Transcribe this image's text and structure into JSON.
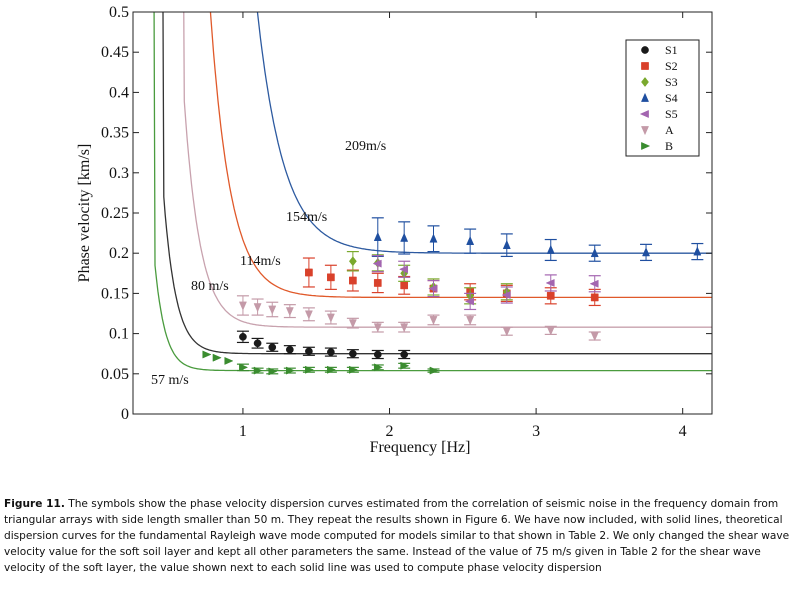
{
  "chart_data": {
    "type": "scatter",
    "xlabel": "Frequency [Hz]",
    "ylabel": "Phase velocity [km/s]",
    "xlim": [
      0.25,
      4.2
    ],
    "ylim": [
      0,
      0.5
    ],
    "xticks": [
      1,
      2,
      3,
      4
    ],
    "xtick_labels": [
      "1",
      "2",
      "3",
      "4"
    ],
    "yticks": [
      0,
      0.05,
      0.1,
      0.15,
      0.2,
      0.25,
      0.3,
      0.35,
      0.4,
      0.45,
      0.5
    ],
    "ytick_labels": [
      "0",
      "0.05",
      "0.1",
      "0.15",
      "0.2",
      "0.25",
      "0.3",
      "0.35",
      "0.4",
      "0.45",
      "0.5"
    ],
    "legend_position": "top-right",
    "series": [
      {
        "name": "S1",
        "marker": "circle",
        "color": "#1a1a1a",
        "x": [
          1.0,
          1.1,
          1.2,
          1.32,
          1.45,
          1.6,
          1.75,
          1.92,
          2.1
        ],
        "y": [
          0.096,
          0.088,
          0.083,
          0.08,
          0.078,
          0.077,
          0.075,
          0.074,
          0.074
        ],
        "err": [
          0.007,
          0.006,
          0.005,
          0.005,
          0.005,
          0.005,
          0.005,
          0.005,
          0.005
        ]
      },
      {
        "name": "S2",
        "marker": "square",
        "color": "#d9412b",
        "x": [
          1.45,
          1.6,
          1.75,
          1.92,
          2.1,
          2.3,
          2.55,
          2.8,
          3.1,
          3.4
        ],
        "y": [
          0.176,
          0.17,
          0.166,
          0.163,
          0.16,
          0.156,
          0.152,
          0.15,
          0.147,
          0.145
        ],
        "err": [
          0.018,
          0.015,
          0.013,
          0.012,
          0.011,
          0.01,
          0.01,
          0.01,
          0.01,
          0.01
        ]
      },
      {
        "name": "S3",
        "marker": "diamond",
        "color": "#7aa92e",
        "x": [
          1.75,
          1.92,
          2.1,
          2.3,
          2.55,
          2.8
        ],
        "y": [
          0.19,
          0.188,
          0.175,
          0.158,
          0.147,
          0.152
        ],
        "err": [
          0.012,
          0.01,
          0.01,
          0.01,
          0.01,
          0.01
        ]
      },
      {
        "name": "S4",
        "marker": "triangle-up",
        "color": "#1f4fa0",
        "x": [
          1.92,
          2.1,
          2.3,
          2.55,
          2.8,
          3.1,
          3.4,
          3.75,
          4.1
        ],
        "y": [
          0.22,
          0.219,
          0.218,
          0.215,
          0.21,
          0.204,
          0.2,
          0.201,
          0.202
        ],
        "err": [
          0.024,
          0.02,
          0.016,
          0.015,
          0.014,
          0.013,
          0.01,
          0.01,
          0.01
        ]
      },
      {
        "name": "S5",
        "marker": "triangle-left",
        "color": "#a365b0",
        "x": [
          1.92,
          2.1,
          2.3,
          2.55,
          2.8,
          3.1,
          3.4
        ],
        "y": [
          0.187,
          0.18,
          0.156,
          0.14,
          0.148,
          0.163,
          0.162
        ],
        "err": [
          0.01,
          0.01,
          0.01,
          0.01,
          0.01,
          0.01,
          0.01
        ]
      },
      {
        "name": "A",
        "marker": "triangle-down",
        "color": "#c49aa8",
        "x": [
          1.0,
          1.1,
          1.2,
          1.32,
          1.45,
          1.6,
          1.75,
          1.92,
          2.1,
          2.3,
          2.55,
          2.8,
          3.1,
          3.4
        ],
        "y": [
          0.135,
          0.133,
          0.13,
          0.128,
          0.124,
          0.12,
          0.113,
          0.108,
          0.108,
          0.117,
          0.117,
          0.103,
          0.104,
          0.097
        ],
        "err": [
          0.012,
          0.01,
          0.009,
          0.008,
          0.008,
          0.008,
          0.006,
          0.006,
          0.006,
          0.006,
          0.006,
          0.005,
          0.005,
          0.005
        ]
      },
      {
        "name": "B",
        "marker": "triangle-right",
        "color": "#3a8c2f",
        "x": [
          0.75,
          0.82,
          0.9,
          1.0,
          1.1,
          1.2,
          1.32,
          1.45,
          1.6,
          1.75,
          1.92,
          2.1,
          2.3
        ],
        "y": [
          0.074,
          0.07,
          0.066,
          0.058,
          0.054,
          0.053,
          0.054,
          0.055,
          0.055,
          0.055,
          0.058,
          0.06,
          0.054
        ],
        "err": [
          0,
          0,
          0,
          0.004,
          0.003,
          0.003,
          0.003,
          0.003,
          0.003,
          0.003,
          0.003,
          0.003,
          0.002
        ]
      }
    ],
    "theory_curves": [
      {
        "label": "57 m/s",
        "color": "#4a9b3e",
        "asymptote": 0.054,
        "fc": 0.395,
        "k": 0.07
      },
      {
        "label": "80 m/s",
        "color": "#333333",
        "asymptote": 0.075,
        "fc": 0.46,
        "k": 0.07
      },
      {
        "label": "114m/s",
        "color": "#c8a2ae",
        "asymptote": 0.108,
        "fc": 0.6,
        "k": 0.07
      },
      {
        "label": "154m/s",
        "color": "#e0592a",
        "asymptote": 0.145,
        "fc": 0.77,
        "k": 0.07
      },
      {
        "label": "209m/s",
        "color": "#2d5aa0",
        "asymptote": 0.2,
        "fc": 1.0,
        "k": 0.07
      }
    ]
  },
  "caption": {
    "figure_label": "Figure 11.",
    "text": " The symbols show the phase velocity dispersion curves estimated from the correlation of seismic noise in the frequency domain from triangular arrays with side length smaller than 50 m. They repeat the results shown in Figure 6. We have now included, with solid lines, theoretical dispersion curves for the fundamental Rayleigh wave mode computed for models similar to that shown in Table 2. We only changed the shear wave velocity value for the soft soil layer and kept all other parameters the same. Instead of the value of 75 m/s given in Table 2 for the shear wave velocity of the soft layer, the value shown next to each solid line was used to compute phase velocity dispersion"
  }
}
